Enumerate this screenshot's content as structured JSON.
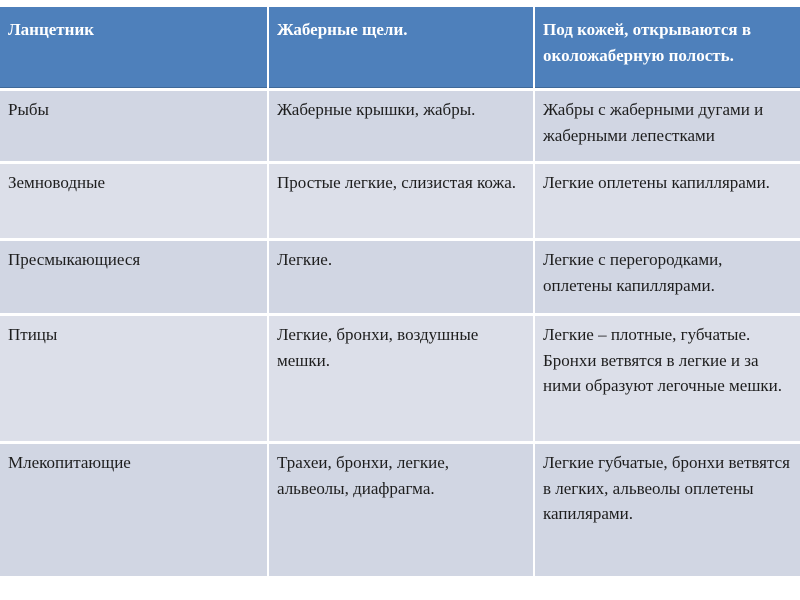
{
  "table": {
    "header": {
      "col1": "Ланцетник",
      "col2": "Жаберные щели.",
      "col3": "Под кожей, открываются в околожаберную полость."
    },
    "rows": [
      {
        "organism": "Рыбы",
        "organs": "Жаберные крышки, жабры.",
        "details": "Жабры с жаберными дугами и жаберными лепестками"
      },
      {
        "organism": "Земноводные",
        "organs": "Простые легкие, слизистая кожа.",
        "details": "Легкие оплетены капиллярами."
      },
      {
        "organism": "Пресмыкающиеся",
        "organs": "Легкие.",
        "details": "Легкие с перегородками, оплетены капиллярами."
      },
      {
        "organism": "Птицы",
        "organs": "Легкие, бронхи, воздушные мешки.",
        "details": "Легкие – плотные, губчатые. Бронхи ветвятся в легкие и за ними образуют легочные мешки."
      },
      {
        "organism": "Млекопитающие",
        "organs": "Трахеи, бронхи, легкие, альвеолы, диафрагма.",
        "details": "Легкие губчатые, бронхи ветвятся в легких, альвеолы оплетены капилярами."
      }
    ]
  },
  "colors": {
    "header_bg": "#4e80bb",
    "header_text": "#ffffff",
    "row_band_a": "#d1d6e3",
    "row_band_b": "#dcdfe9",
    "body_text": "#1e1e1e",
    "grid_line": "#ffffff",
    "slide_background": "#ffffff"
  }
}
